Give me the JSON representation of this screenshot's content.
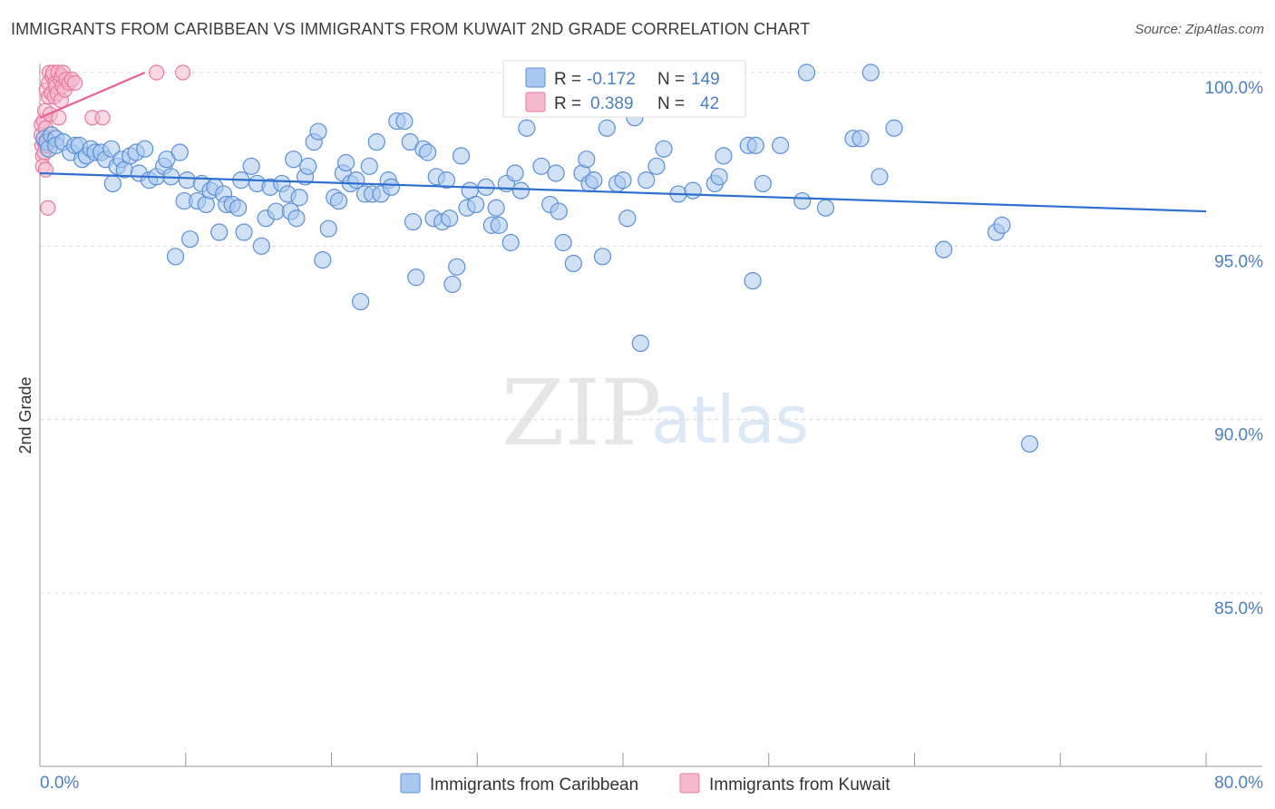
{
  "header": {
    "title": "IMMIGRANTS FROM CARIBBEAN VS IMMIGRANTS FROM KUWAIT 2ND GRADE CORRELATION CHART",
    "source": "Source: ZipAtlas.com"
  },
  "watermark": {
    "zip": "ZIP",
    "atlas": "atlas"
  },
  "colors": {
    "caribbean_fill": "#a9c8ef",
    "caribbean_stroke": "#5b8fd6",
    "caribbean_line": "#2f6fd0",
    "kuwait_fill": "#f6b9cc",
    "kuwait_stroke": "#e87aa0",
    "kuwait_line": "#e8608e",
    "grid": "#dcdcdc",
    "tick_text": "#4a7fc6"
  },
  "chart_data": {
    "type": "scatter",
    "title": "IMMIGRANTS FROM CARIBBEAN VS IMMIGRANTS FROM KUWAIT 2ND GRADE CORRELATION CHART",
    "xlabel": "",
    "ylabel": "2nd Grade",
    "xlim": [
      0,
      80
    ],
    "ylim": [
      80.5,
      100.8
    ],
    "x_tick_labels": [
      "0.0%",
      "80.0%"
    ],
    "y_ticks": [
      {
        "value": 100,
        "label": "100.0%"
      },
      {
        "value": 95,
        "label": "95.0%"
      },
      {
        "value": 90,
        "label": "90.0%"
      },
      {
        "value": 85,
        "label": "85.0%"
      }
    ],
    "legend": {
      "position": "bottom-center",
      "items": [
        "Immigrants from Caribbean",
        "Immigrants from Kuwait"
      ]
    },
    "stats": [
      {
        "r_label": "R =",
        "r": "-0.172",
        "n_label": "N =",
        "n": "149"
      },
      {
        "r_label": "R =",
        "r": "0.389",
        "n_label": "N =",
        "n": "42"
      }
    ],
    "series": [
      {
        "name": "Immigrants from Caribbean",
        "trend": {
          "x": [
            0,
            80
          ],
          "y": [
            97.1,
            96.0
          ]
        },
        "points": [
          [
            0.3,
            98.1
          ],
          [
            0.5,
            98.0
          ],
          [
            0.6,
            97.8
          ],
          [
            0.8,
            98.2
          ],
          [
            1.1,
            98.1
          ],
          [
            1.1,
            97.9
          ],
          [
            1.6,
            98.0
          ],
          [
            2.1,
            97.7
          ],
          [
            2.4,
            97.9
          ],
          [
            2.7,
            97.9
          ],
          [
            2.9,
            97.5
          ],
          [
            3.2,
            97.6
          ],
          [
            3.5,
            97.8
          ],
          [
            3.8,
            97.7
          ],
          [
            4.2,
            97.7
          ],
          [
            4.5,
            97.5
          ],
          [
            4.9,
            97.8
          ],
          [
            5.0,
            96.8
          ],
          [
            5.3,
            97.3
          ],
          [
            5.6,
            97.5
          ],
          [
            5.8,
            97.2
          ],
          [
            6.2,
            97.6
          ],
          [
            6.6,
            97.7
          ],
          [
            6.8,
            97.1
          ],
          [
            7.2,
            97.8
          ],
          [
            7.5,
            96.9
          ],
          [
            8.0,
            97.0
          ],
          [
            8.5,
            97.3
          ],
          [
            8.7,
            97.5
          ],
          [
            9.0,
            97.0
          ],
          [
            9.3,
            94.7
          ],
          [
            9.6,
            97.7
          ],
          [
            9.9,
            96.3
          ],
          [
            10.1,
            96.9
          ],
          [
            10.3,
            95.2
          ],
          [
            10.8,
            96.3
          ],
          [
            11.1,
            96.8
          ],
          [
            11.4,
            96.2
          ],
          [
            11.7,
            96.6
          ],
          [
            12.0,
            96.7
          ],
          [
            12.3,
            95.4
          ],
          [
            12.6,
            96.5
          ],
          [
            12.8,
            96.2
          ],
          [
            13.2,
            96.2
          ],
          [
            13.6,
            96.1
          ],
          [
            13.8,
            96.9
          ],
          [
            14.0,
            95.4
          ],
          [
            14.5,
            97.3
          ],
          [
            14.9,
            96.8
          ],
          [
            15.2,
            95.0
          ],
          [
            15.5,
            95.8
          ],
          [
            15.8,
            96.7
          ],
          [
            16.2,
            96.0
          ],
          [
            16.6,
            96.8
          ],
          [
            17.0,
            96.5
          ],
          [
            17.2,
            96.0
          ],
          [
            17.4,
            97.5
          ],
          [
            17.6,
            95.8
          ],
          [
            17.8,
            96.4
          ],
          [
            18.2,
            97.0
          ],
          [
            18.4,
            97.3
          ],
          [
            18.8,
            98.0
          ],
          [
            19.1,
            98.3
          ],
          [
            19.4,
            94.6
          ],
          [
            19.8,
            95.5
          ],
          [
            20.2,
            96.4
          ],
          [
            20.5,
            96.3
          ],
          [
            20.8,
            97.1
          ],
          [
            21.0,
            97.4
          ],
          [
            21.3,
            96.8
          ],
          [
            21.7,
            96.9
          ],
          [
            22.0,
            93.4
          ],
          [
            22.3,
            96.5
          ],
          [
            22.6,
            97.3
          ],
          [
            22.8,
            96.5
          ],
          [
            23.1,
            98.0
          ],
          [
            23.4,
            96.5
          ],
          [
            23.9,
            96.9
          ],
          [
            24.1,
            96.7
          ],
          [
            24.5,
            98.6
          ],
          [
            25.0,
            98.6
          ],
          [
            25.4,
            98.0
          ],
          [
            25.6,
            95.7
          ],
          [
            25.8,
            94.1
          ],
          [
            26.3,
            97.8
          ],
          [
            26.6,
            97.7
          ],
          [
            27.0,
            95.8
          ],
          [
            27.2,
            97.0
          ],
          [
            27.6,
            95.7
          ],
          [
            27.9,
            96.9
          ],
          [
            28.1,
            95.8
          ],
          [
            28.3,
            93.9
          ],
          [
            28.6,
            94.4
          ],
          [
            28.9,
            97.6
          ],
          [
            29.3,
            96.1
          ],
          [
            29.5,
            96.6
          ],
          [
            29.9,
            96.2
          ],
          [
            30.6,
            96.7
          ],
          [
            31.0,
            95.6
          ],
          [
            31.3,
            96.1
          ],
          [
            31.5,
            95.6
          ],
          [
            32.0,
            96.8
          ],
          [
            32.3,
            95.1
          ],
          [
            32.6,
            97.1
          ],
          [
            33.0,
            96.6
          ],
          [
            33.4,
            98.4
          ],
          [
            34.4,
            97.3
          ],
          [
            35.0,
            96.2
          ],
          [
            35.4,
            97.1
          ],
          [
            35.6,
            96.0
          ],
          [
            35.9,
            95.1
          ],
          [
            36.6,
            94.5
          ],
          [
            37.2,
            97.1
          ],
          [
            37.5,
            97.5
          ],
          [
            37.7,
            96.8
          ],
          [
            38.0,
            96.9
          ],
          [
            38.6,
            94.7
          ],
          [
            38.9,
            98.4
          ],
          [
            39.6,
            96.8
          ],
          [
            40.0,
            96.9
          ],
          [
            40.3,
            95.8
          ],
          [
            40.8,
            98.7
          ],
          [
            41.2,
            92.2
          ],
          [
            41.6,
            96.9
          ],
          [
            42.3,
            97.3
          ],
          [
            42.8,
            97.8
          ],
          [
            43.8,
            96.5
          ],
          [
            44.8,
            96.6
          ],
          [
            45.3,
            99.2
          ],
          [
            46.3,
            96.8
          ],
          [
            46.6,
            97.0
          ],
          [
            46.9,
            97.6
          ],
          [
            48.6,
            97.9
          ],
          [
            48.9,
            94.0
          ],
          [
            49.1,
            97.9
          ],
          [
            49.6,
            96.8
          ],
          [
            50.8,
            97.9
          ],
          [
            52.3,
            96.3
          ],
          [
            52.6,
            100.0
          ],
          [
            53.9,
            96.1
          ],
          [
            55.8,
            98.1
          ],
          [
            56.3,
            98.1
          ],
          [
            57.6,
            97.0
          ],
          [
            58.6,
            98.4
          ],
          [
            62.0,
            94.9
          ],
          [
            65.6,
            95.4
          ],
          [
            66.0,
            95.6
          ],
          [
            67.9,
            89.3
          ],
          [
            57.0,
            100.0
          ]
        ]
      },
      {
        "name": "Immigrants from Kuwait",
        "trend": {
          "x": [
            0,
            7.2
          ],
          "y": [
            98.7,
            100.0
          ]
        },
        "points": [
          [
            0.1,
            98.5
          ],
          [
            0.1,
            98.2
          ],
          [
            0.15,
            97.9
          ],
          [
            0.2,
            97.6
          ],
          [
            0.2,
            97.3
          ],
          [
            0.25,
            98.6
          ],
          [
            0.3,
            98.0
          ],
          [
            0.3,
            97.7
          ],
          [
            0.35,
            98.9
          ],
          [
            0.4,
            98.4
          ],
          [
            0.4,
            97.2
          ],
          [
            0.45,
            99.5
          ],
          [
            0.5,
            98.1
          ],
          [
            0.5,
            97.9
          ],
          [
            0.55,
            96.1
          ],
          [
            0.6,
            99.7
          ],
          [
            0.6,
            99.3
          ],
          [
            0.65,
            100.0
          ],
          [
            0.7,
            98.8
          ],
          [
            0.8,
            99.4
          ],
          [
            0.85,
            99.9
          ],
          [
            0.9,
            100.0
          ],
          [
            1.0,
            99.3
          ],
          [
            1.05,
            99.7
          ],
          [
            1.1,
            99.6
          ],
          [
            1.2,
            99.4
          ],
          [
            1.25,
            100.0
          ],
          [
            1.3,
            98.7
          ],
          [
            1.4,
            99.8
          ],
          [
            1.45,
            99.2
          ],
          [
            1.5,
            99.9
          ],
          [
            1.55,
            99.6
          ],
          [
            1.6,
            100.0
          ],
          [
            1.7,
            99.5
          ],
          [
            1.8,
            99.8
          ],
          [
            2.0,
            99.7
          ],
          [
            2.2,
            99.8
          ],
          [
            2.4,
            99.7
          ],
          [
            3.6,
            98.7
          ],
          [
            4.3,
            98.7
          ],
          [
            8.0,
            100.0
          ],
          [
            9.8,
            100.0
          ]
        ]
      }
    ]
  }
}
